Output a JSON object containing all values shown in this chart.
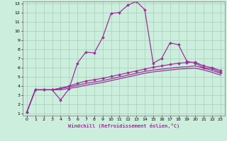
{
  "xlabel": "Windchill (Refroidissement éolien,°C)",
  "bg_color": "#cceedd",
  "grid_color": "#aaccbb",
  "line_color": "#993399",
  "xlim": [
    -0.5,
    23.5
  ],
  "ylim": [
    0.8,
    13.2
  ],
  "xticks": [
    0,
    1,
    2,
    3,
    4,
    5,
    6,
    7,
    8,
    9,
    10,
    11,
    12,
    13,
    14,
    15,
    16,
    17,
    18,
    19,
    20,
    21,
    22,
    23
  ],
  "yticks": [
    1,
    2,
    3,
    4,
    5,
    6,
    7,
    8,
    9,
    10,
    11,
    12,
    13
  ],
  "line1_x": [
    0,
    1,
    2,
    3,
    4,
    5,
    6,
    7,
    8,
    9,
    10,
    11,
    12,
    13,
    14,
    15,
    16,
    17,
    18,
    19,
    20,
    21,
    22,
    23
  ],
  "line1_y": [
    1.2,
    3.6,
    3.6,
    3.6,
    2.5,
    3.7,
    6.5,
    7.7,
    7.6,
    9.3,
    11.9,
    12.0,
    12.8,
    13.2,
    12.3,
    6.5,
    7.0,
    8.7,
    8.5,
    6.7,
    6.5,
    6.0,
    5.9,
    5.5
  ],
  "line2_x": [
    0,
    1,
    2,
    3,
    4,
    5,
    6,
    7,
    8,
    9,
    10,
    11,
    12,
    13,
    14,
    15,
    16,
    17,
    18,
    19,
    20,
    21,
    22,
    23
  ],
  "line2_y": [
    1.2,
    3.6,
    3.6,
    3.6,
    3.8,
    4.0,
    4.3,
    4.55,
    4.7,
    4.85,
    5.05,
    5.25,
    5.45,
    5.65,
    5.85,
    6.05,
    6.2,
    6.35,
    6.5,
    6.55,
    6.6,
    6.2,
    6.0,
    5.7
  ],
  "line3_x": [
    0,
    1,
    2,
    3,
    4,
    5,
    6,
    7,
    8,
    9,
    10,
    11,
    12,
    13,
    14,
    15,
    16,
    17,
    18,
    19,
    20,
    21,
    22,
    23
  ],
  "line3_y": [
    1.2,
    3.6,
    3.6,
    3.6,
    3.75,
    3.9,
    4.1,
    4.3,
    4.45,
    4.6,
    4.8,
    5.0,
    5.2,
    5.4,
    5.6,
    5.75,
    5.85,
    5.95,
    6.05,
    6.1,
    6.2,
    5.95,
    5.7,
    5.4
  ],
  "line4_x": [
    0,
    1,
    2,
    3,
    4,
    5,
    6,
    7,
    8,
    9,
    10,
    11,
    12,
    13,
    14,
    15,
    16,
    17,
    18,
    19,
    20,
    21,
    22,
    23
  ],
  "line4_y": [
    1.2,
    3.6,
    3.6,
    3.6,
    3.6,
    3.75,
    3.9,
    4.1,
    4.25,
    4.4,
    4.6,
    4.8,
    5.0,
    5.2,
    5.4,
    5.55,
    5.65,
    5.75,
    5.85,
    5.9,
    5.95,
    5.75,
    5.5,
    5.2
  ]
}
